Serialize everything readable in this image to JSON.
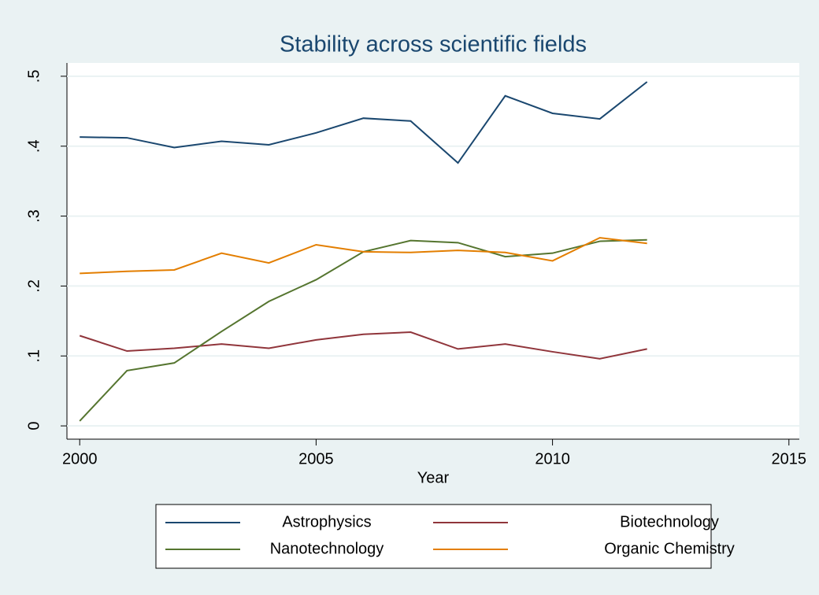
{
  "chart_data": {
    "type": "line",
    "title": "Stability across scientific fields",
    "x_label": "Year",
    "x": [
      2000,
      2001,
      2002,
      2003,
      2004,
      2005,
      2006,
      2007,
      2008,
      2009,
      2010,
      2011,
      2012
    ],
    "series": [
      {
        "name": "Astrophysics",
        "color": "#1a476f",
        "values": [
          0.413,
          0.412,
          0.398,
          0.407,
          0.402,
          0.419,
          0.44,
          0.436,
          0.376,
          0.472,
          0.447,
          0.439,
          0.492
        ]
      },
      {
        "name": "Biotechnology",
        "color": "#90353b",
        "values": [
          0.129,
          0.107,
          0.111,
          0.117,
          0.111,
          0.123,
          0.131,
          0.134,
          0.11,
          0.117,
          0.106,
          0.096,
          0.11
        ]
      },
      {
        "name": "Nanotechnology",
        "color": "#55752f",
        "values": [
          0.007,
          0.079,
          0.09,
          0.135,
          0.178,
          0.209,
          0.249,
          0.265,
          0.262,
          0.242,
          0.247,
          0.264,
          0.266
        ]
      },
      {
        "name": "Organic Chemistry",
        "color": "#e37e00",
        "values": [
          0.218,
          0.221,
          0.223,
          0.247,
          0.233,
          0.259,
          0.249,
          0.248,
          0.251,
          0.248,
          0.236,
          0.269,
          0.261
        ]
      }
    ],
    "xlim": [
      1999.73,
      2015.22
    ],
    "xticks": [
      2000,
      2005,
      2010,
      2015
    ],
    "ylim": [
      -0.019,
      0.519
    ],
    "yticks": [
      0,
      {
        "value": 0.1,
        "label": ".1"
      },
      {
        "value": 0.2,
        "label": ".2"
      },
      {
        "value": 0.3,
        "label": ".3"
      },
      {
        "value": 0.4,
        "label": ".4"
      },
      {
        "value": 0.5,
        "label": ".5"
      }
    ],
    "grid": true,
    "legend": "bottom"
  }
}
